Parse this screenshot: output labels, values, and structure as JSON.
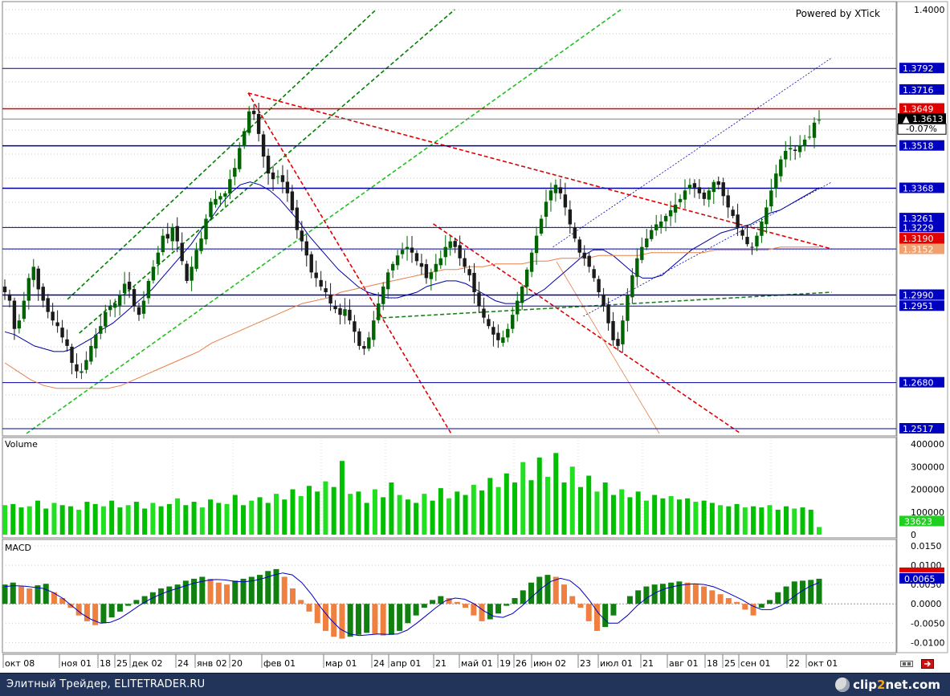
{
  "app": {
    "watermark": "Powered by XTick",
    "footer_site": "Элитный Трейдер, ELITETRADER.RU",
    "logo": {
      "pre": "clip",
      "num": "2",
      "post": "net.com"
    }
  },
  "colors": {
    "bull": "#006400",
    "bear": "#1a1a1a",
    "ma_short": "#0000a0",
    "ma_long": "#e8804a",
    "red_level": "#e00000",
    "blue_level": "#0000a0",
    "vol_green": "#00c000",
    "macd_pos": "#108010",
    "macd_neg": "#f08040"
  },
  "chart_data": [
    {
      "type": "candlestick",
      "title": "",
      "ylim": [
        1.25,
        1.4
      ],
      "y_ticks": [
        "1.4000",
        "1.3792",
        "1.3716",
        "1.3649",
        "1.3613",
        "-0.07%",
        "1.3518",
        "1.3368",
        "1.3261",
        "1.3229",
        "1.3190",
        "1.3152",
        "1.3153",
        "1.2990",
        "1.2951",
        "1.2680",
        "1.2517"
      ],
      "last_price": "1.3613",
      "change": "-0.07%",
      "price_labels": [
        {
          "value": 1.3792,
          "text": "1.3792",
          "bg": "#0000c0"
        },
        {
          "value": 1.3716,
          "text": "1.3716",
          "bg": "#0000c0"
        },
        {
          "value": 1.3649,
          "text": "1.3649",
          "bg": "#e00000"
        },
        {
          "value": 1.3613,
          "text": "1.3613",
          "bg": "#000000"
        },
        {
          "value": 1.3518,
          "text": "1.3518",
          "bg": "#0000c0"
        },
        {
          "value": 1.3368,
          "text": "1.3368",
          "bg": "#0000c0"
        },
        {
          "value": 1.3261,
          "text": "1.3261",
          "bg": "#0000c0"
        },
        {
          "value": 1.3229,
          "text": "1.3229",
          "bg": "#0000c0"
        },
        {
          "value": 1.319,
          "text": "1.3190",
          "bg": "#e00000"
        },
        {
          "value": 1.3153,
          "text": "1.3153",
          "bg": "#0000c0"
        },
        {
          "value": 1.3152,
          "text": "1.3152",
          "bg": "#f0a070"
        },
        {
          "value": 1.299,
          "text": "1.2990",
          "bg": "#0000c0"
        },
        {
          "value": 1.2951,
          "text": "1.2951",
          "bg": "#0000c0"
        },
        {
          "value": 1.268,
          "text": "1.2680",
          "bg": "#0000c0"
        },
        {
          "value": 1.2517,
          "text": "1.2517",
          "bg": "#0000c0"
        }
      ],
      "levels": [
        {
          "value": 1.3792,
          "color": "#0000a0",
          "width": 1
        },
        {
          "value": 1.3649,
          "color": "#e00000",
          "width": 1.5
        },
        {
          "value": 1.3613,
          "color": "#808080",
          "width": 1
        },
        {
          "value": 1.3518,
          "color": "#0000a0",
          "width": 1.5
        },
        {
          "value": 1.3368,
          "color": "#0000a0",
          "width": 1.5
        },
        {
          "value": 1.3229,
          "color": "#0000a0",
          "width": 1
        },
        {
          "value": 1.3153,
          "color": "#0000a0",
          "width": 1
        },
        {
          "value": 1.299,
          "color": "#0000a0",
          "width": 1.5
        },
        {
          "value": 1.2951,
          "color": "#0000a0",
          "width": 1
        },
        {
          "value": 1.268,
          "color": "#0000a0",
          "width": 1
        },
        {
          "value": 1.2517,
          "color": "#0000a0",
          "width": 1
        }
      ],
      "close_path": [
        1.3,
        1.297,
        1.287,
        1.29,
        1.297,
        1.305,
        1.309,
        1.301,
        1.297,
        1.293,
        1.29,
        1.288,
        1.284,
        1.281,
        1.275,
        1.272,
        1.272,
        1.276,
        1.281,
        1.285,
        1.288,
        1.293,
        1.295,
        1.296,
        1.299,
        1.303,
        1.301,
        1.295,
        1.292,
        1.297,
        1.304,
        1.309,
        1.314,
        1.32,
        1.319,
        1.323,
        1.318,
        1.311,
        1.304,
        1.309,
        1.315,
        1.319,
        1.326,
        1.332,
        1.333,
        1.334,
        1.335,
        1.34,
        1.344,
        1.351,
        1.357,
        1.364,
        1.363,
        1.356,
        1.348,
        1.342,
        1.34,
        1.341,
        1.339,
        1.335,
        1.329,
        1.322,
        1.318,
        1.313,
        1.307,
        1.305,
        1.302,
        1.3,
        1.296,
        1.294,
        1.292,
        1.294,
        1.29,
        1.286,
        1.281,
        1.28,
        1.284,
        1.29,
        1.296,
        1.302,
        1.307,
        1.31,
        1.313,
        1.315,
        1.316,
        1.314,
        1.311,
        1.309,
        1.305,
        1.307,
        1.31,
        1.312,
        1.316,
        1.318,
        1.316,
        1.312,
        1.309,
        1.306,
        1.3,
        1.295,
        1.291,
        1.288,
        1.285,
        1.283,
        1.284,
        1.287,
        1.292,
        1.297,
        1.302,
        1.308,
        1.314,
        1.32,
        1.326,
        1.332,
        1.336,
        1.338,
        1.335,
        1.33,
        1.324,
        1.319,
        1.314,
        1.312,
        1.309,
        1.305,
        1.3,
        1.295,
        1.289,
        1.283,
        1.281,
        1.29,
        1.299,
        1.306,
        1.312,
        1.316,
        1.319,
        1.322,
        1.324,
        1.325,
        1.327,
        1.329,
        1.331,
        1.333,
        1.336,
        1.338,
        1.337,
        1.335,
        1.333,
        1.336,
        1.339,
        1.338,
        1.334,
        1.33,
        1.327,
        1.323,
        1.32,
        1.317,
        1.316,
        1.32,
        1.325,
        1.33,
        1.336,
        1.342,
        1.347,
        1.35,
        1.351,
        1.35,
        1.352,
        1.354,
        1.355,
        1.36,
        1.361
      ],
      "ma_short": [
        1.286,
        1.285,
        1.283,
        1.281,
        1.28,
        1.279,
        1.279,
        1.28,
        1.282,
        1.284,
        1.287,
        1.289,
        1.292,
        1.295,
        1.298,
        1.301,
        1.305,
        1.309,
        1.313,
        1.317,
        1.322,
        1.326,
        1.331,
        1.335,
        1.338,
        1.339,
        1.338,
        1.336,
        1.333,
        1.329,
        1.325,
        1.32,
        1.316,
        1.312,
        1.308,
        1.305,
        1.302,
        1.3,
        1.299,
        1.298,
        1.298,
        1.299,
        1.3,
        1.302,
        1.303,
        1.304,
        1.304,
        1.303,
        1.301,
        1.299,
        1.297,
        1.296,
        1.296,
        1.297,
        1.299,
        1.301,
        1.304,
        1.307,
        1.31,
        1.313,
        1.315,
        1.315,
        1.313,
        1.31,
        1.307,
        1.305,
        1.305,
        1.306,
        1.309,
        1.312,
        1.315,
        1.317,
        1.319,
        1.321,
        1.322,
        1.323,
        1.324,
        1.326,
        1.328,
        1.329,
        1.331,
        1.333,
        1.335,
        1.337
      ],
      "ma_long": [
        1.275,
        1.272,
        1.269,
        1.267,
        1.266,
        1.266,
        1.266,
        1.266,
        1.266,
        1.267,
        1.269,
        1.271,
        1.273,
        1.275,
        1.277,
        1.279,
        1.282,
        1.284,
        1.286,
        1.288,
        1.29,
        1.292,
        1.294,
        1.296,
        1.297,
        1.298,
        1.3,
        1.301,
        1.302,
        1.303,
        1.304,
        1.305,
        1.306,
        1.307,
        1.308,
        1.308,
        1.309,
        1.309,
        1.31,
        1.31,
        1.31,
        1.311,
        1.311,
        1.312,
        1.312,
        1.312,
        1.313,
        1.313,
        1.313,
        1.313,
        1.314,
        1.314,
        1.314,
        1.314,
        1.314,
        1.315,
        1.315,
        1.315,
        1.315,
        1.315,
        1.316,
        1.316,
        1.316,
        1.316
      ],
      "trend_lines": [
        {
          "from": [
            0.073,
            1.2975
          ],
          "to": [
            0.418,
            1.4
          ],
          "color": "#008000",
          "dash": true
        },
        {
          "from": [
            0.086,
            1.2855
          ],
          "to": [
            0.506,
            1.4
          ],
          "color": "#008000",
          "dash": true
        },
        {
          "from": [
            0.027,
            1.25
          ],
          "to": [
            0.692,
            1.4
          ],
          "color": "#20c020",
          "dash": true
        },
        {
          "from": [
            0.275,
            1.3705
          ],
          "to": [
            0.928,
            1.3153
          ],
          "color": "#e00000",
          "dash": true
        },
        {
          "from": [
            0.275,
            1.3705
          ],
          "to": [
            0.502,
            1.25
          ],
          "color": "#e00000",
          "dash": true
        },
        {
          "from": [
            0.482,
            1.3242
          ],
          "to": [
            0.826,
            1.25
          ],
          "color": "#e00000",
          "dash": true
        },
        {
          "from": [
            0.418,
            1.2908
          ],
          "to": [
            0.928,
            1.3
          ],
          "color": "#208020",
          "dash": true
        },
        {
          "from": [
            0.616,
            1.316
          ],
          "to": [
            0.928,
            1.383
          ],
          "color": "#0000c0",
          "dash": false,
          "thin": true
        },
        {
          "from": [
            0.65,
            1.2915
          ],
          "to": [
            0.928,
            1.339
          ],
          "color": "#0000c0",
          "dash": false,
          "thin": true
        },
        {
          "from": [
            0.62,
            1.3108
          ],
          "to": [
            0.735,
            1.25
          ],
          "color": "#e8804a",
          "dash": false,
          "thin": true
        }
      ],
      "x_ticks": [
        "окт 08",
        "ноя 01",
        "18",
        "25",
        "дек 02",
        "24",
        "янв 02",
        "20",
        "фев 01",
        "мар 01",
        "24",
        "апр 01",
        "21",
        "май 01",
        "19",
        "26",
        "июн 02",
        "23",
        "июл 01",
        "21",
        "авг 01",
        "18",
        "25",
        "сен 01",
        "22",
        "окт 01"
      ]
    },
    {
      "type": "bar",
      "title": "Volume",
      "ylim": [
        0,
        400000
      ],
      "y_ticks": [
        "400000",
        "300000",
        "200000",
        "100000",
        "0"
      ],
      "last_value": "33623",
      "values": [
        130000,
        135000,
        120000,
        125000,
        150000,
        115000,
        140000,
        130000,
        125000,
        110000,
        145000,
        135000,
        125000,
        150000,
        120000,
        130000,
        145000,
        115000,
        140000,
        125000,
        135000,
        160000,
        130000,
        145000,
        120000,
        155000,
        140000,
        135000,
        175000,
        130000,
        150000,
        165000,
        140000,
        180000,
        155000,
        200000,
        170000,
        215000,
        190000,
        235000,
        210000,
        325000,
        180000,
        190000,
        140000,
        200000,
        165000,
        230000,
        175000,
        155000,
        140000,
        180000,
        150000,
        205000,
        160000,
        190000,
        175000,
        220000,
        195000,
        250000,
        210000,
        270000,
        230000,
        320000,
        240000,
        340000,
        255000,
        360000,
        230000,
        300000,
        210000,
        260000,
        190000,
        230000,
        175000,
        200000,
        165000,
        190000,
        150000,
        175000,
        160000,
        170000,
        155000,
        160000,
        145000,
        150000,
        140000,
        130000,
        125000,
        135000,
        120000,
        125000,
        120000,
        130000,
        110000,
        125000,
        115000,
        120000,
        110000,
        33623
      ]
    },
    {
      "type": "bar",
      "title": "MACD",
      "ylim": [
        -0.012,
        0.015
      ],
      "y_ticks": [
        "0.0150",
        "0.0100",
        "0.0050",
        "0.0000",
        "-0.0050",
        "-0.0100"
      ],
      "last_value": "0.0065",
      "values": [
        0.005,
        0.0055,
        0.0045,
        0.004,
        0.0048,
        0.0052,
        0.003,
        0.0015,
        -0.001,
        -0.003,
        -0.0045,
        -0.0055,
        -0.005,
        -0.0035,
        -0.002,
        -0.0005,
        0.001,
        0.002,
        0.003,
        0.004,
        0.0045,
        0.005,
        0.006,
        0.0065,
        0.007,
        0.0065,
        0.0055,
        0.005,
        0.006,
        0.0065,
        0.007,
        0.0075,
        0.0085,
        0.009,
        0.007,
        0.004,
        0.001,
        -0.002,
        -0.005,
        -0.007,
        -0.0085,
        -0.009,
        -0.0085,
        -0.008,
        -0.0075,
        -0.0078,
        -0.0082,
        -0.008,
        -0.007,
        -0.005,
        -0.003,
        -0.001,
        0.001,
        0.002,
        0.0015,
        0.0005,
        -0.001,
        -0.003,
        -0.0045,
        -0.004,
        -0.0025,
        -0.0005,
        0.0015,
        0.0035,
        0.0055,
        0.007,
        0.0075,
        0.007,
        0.005,
        0.002,
        -0.001,
        -0.0045,
        -0.007,
        -0.006,
        -0.003,
        0.0,
        0.002,
        0.0035,
        0.0045,
        0.005,
        0.0052,
        0.0055,
        0.0058,
        0.0055,
        0.005,
        0.0045,
        0.0035,
        0.0025,
        0.0015,
        0.0005,
        -0.0015,
        -0.003,
        -0.001,
        0.001,
        0.003,
        0.0045,
        0.0058,
        0.006,
        0.0062,
        0.0065
      ],
      "signal": [
        0.0045,
        0.0047,
        0.0046,
        0.0043,
        0.004,
        0.003,
        0.0015,
        -0.0005,
        -0.0025,
        -0.004,
        -0.005,
        -0.0048,
        -0.0038,
        -0.0022,
        -0.0005,
        0.001,
        0.0022,
        0.0032,
        0.004,
        0.0048,
        0.0055,
        0.006,
        0.0063,
        0.0062,
        0.0058,
        0.0057,
        0.006,
        0.0066,
        0.0074,
        0.008,
        0.0075,
        0.0055,
        0.0025,
        -0.001,
        -0.004,
        -0.0065,
        -0.0078,
        -0.0082,
        -0.008,
        -0.0078,
        -0.0079,
        -0.0078,
        -0.0068,
        -0.005,
        -0.003,
        -0.001,
        0.0008,
        0.0015,
        0.0012,
        0.0,
        -0.0018,
        -0.0032,
        -0.0035,
        -0.0025,
        -0.0005,
        0.0018,
        0.004,
        0.0058,
        0.0066,
        0.006,
        0.004,
        0.001,
        -0.0025,
        -0.005,
        -0.005,
        -0.003,
        -0.0005,
        0.0015,
        0.003,
        0.004,
        0.0046,
        0.005,
        0.0052,
        0.005,
        0.0044,
        0.0034,
        0.0022,
        0.001,
        -0.0005,
        -0.0015,
        -0.0015,
        -0.0005,
        0.0012,
        0.003,
        0.0045,
        0.0055
      ]
    }
  ]
}
